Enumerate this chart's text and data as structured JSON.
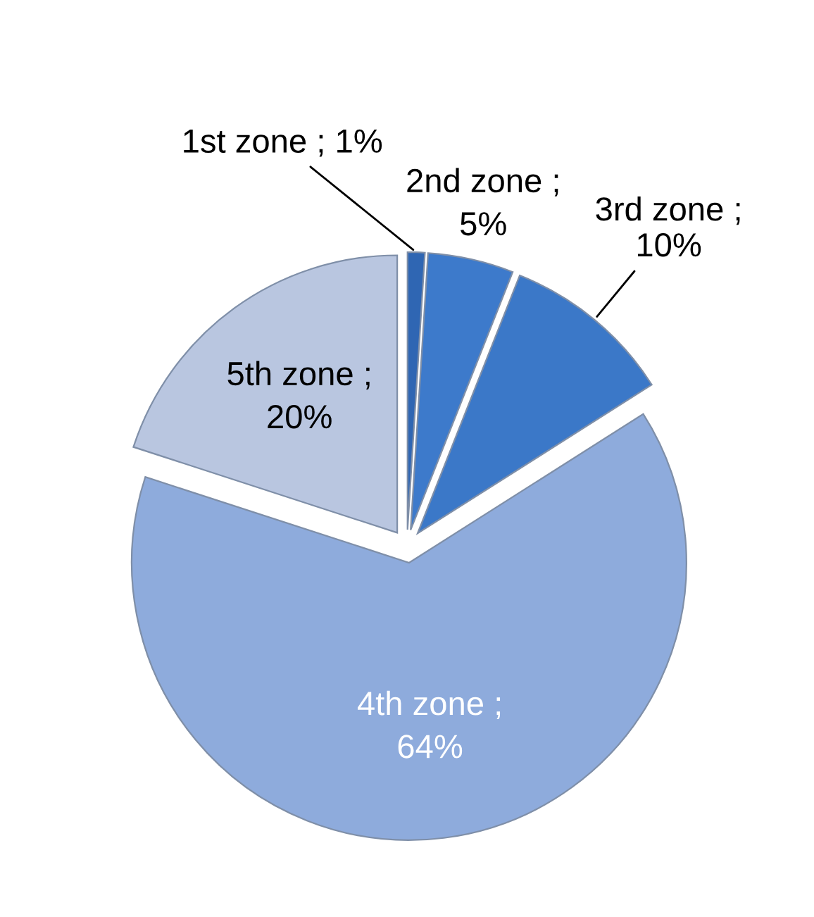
{
  "chart_data": {
    "type": "pie",
    "categories": [
      "1st zone",
      "2nd zone",
      "3rd zone",
      "4th zone",
      "5th zone"
    ],
    "values": [
      1,
      5,
      10,
      64,
      20
    ],
    "colors": [
      "#2f66b3",
      "#3d7acb",
      "#3b78c8",
      "#8eabdc",
      "#b9c6e0"
    ],
    "value_labels": [
      "; 1%",
      ";\n5%",
      ";\n10%",
      ";\n64%",
      ";\n20%"
    ]
  }
}
